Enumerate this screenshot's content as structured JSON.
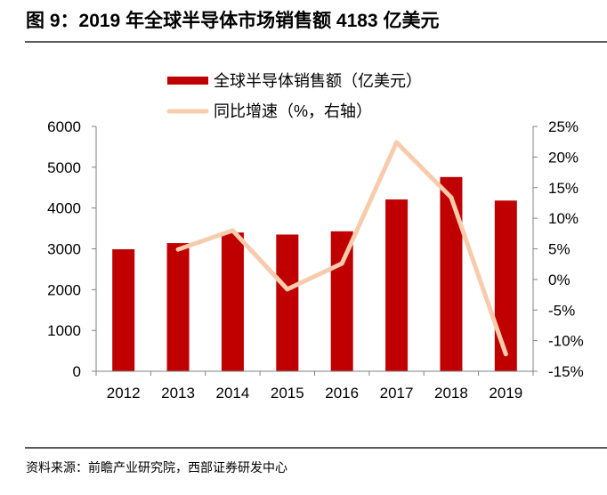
{
  "title": "图 9：2019 年全球半导体市场销售额 4183 亿美元",
  "source": "资料来源：前瞻产业研究院，西部证券研发中心",
  "colors": {
    "bar": "#C00000",
    "line": "#F8CBAD",
    "axis": "#808080",
    "rule": "#595959"
  },
  "chart_data": {
    "type": "bar",
    "title": "图 9：2019 年全球半导体市场销售额 4183 亿美元",
    "categories": [
      "2012",
      "2013",
      "2014",
      "2015",
      "2016",
      "2017",
      "2018",
      "2019"
    ],
    "series": [
      {
        "name": "全球半导体销售额（亿美元）",
        "type": "bar",
        "axis": "left",
        "values": [
          2990,
          3140,
          3400,
          3350,
          3430,
          4210,
          4760,
          4183
        ]
      },
      {
        "name": "同比增速（%，右轴）",
        "type": "line",
        "axis": "right",
        "values": [
          null,
          4.9,
          8.0,
          -1.6,
          2.6,
          22.4,
          13.4,
          -12.2
        ]
      }
    ],
    "left_axis": {
      "ylim": [
        0,
        6000
      ],
      "ticks": [
        0,
        1000,
        2000,
        3000,
        4000,
        5000,
        6000
      ],
      "tick_labels": [
        "0",
        "1000",
        "2000",
        "3000",
        "4000",
        "5000",
        "6000"
      ]
    },
    "right_axis": {
      "ylim": [
        -15,
        25
      ],
      "ticks": [
        -15,
        -10,
        -5,
        0,
        5,
        10,
        15,
        20,
        25
      ],
      "tick_labels": [
        "-15%",
        "-10%",
        "-5%",
        "0%",
        "5%",
        "10%",
        "15%",
        "20%",
        "25%"
      ]
    },
    "xlabel": "",
    "ylabel": "",
    "grid": false,
    "legend_position": "top-center"
  }
}
